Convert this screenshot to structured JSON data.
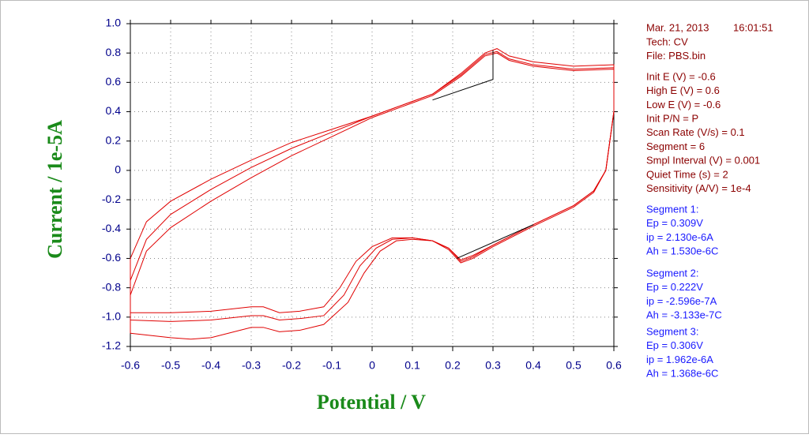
{
  "chart_data": {
    "type": "line",
    "x_label": "Potential / V",
    "y_label": "Current / 1e-5A",
    "xlim": [
      -0.6,
      0.6
    ],
    "ylim": [
      -1.2,
      1.0
    ],
    "xticks": [
      -0.6,
      -0.5,
      -0.4,
      -0.3,
      -0.2,
      -0.1,
      0,
      0.1,
      0.2,
      0.3,
      0.4,
      0.5,
      0.6
    ],
    "yticks": [
      {
        "value": 1,
        "label": "1.0"
      },
      0.8,
      0.6,
      0.4,
      0.2,
      0,
      -0.2,
      -0.4,
      -0.6,
      -0.8,
      {
        "value": -1,
        "label": "-1.0"
      },
      -1.2
    ],
    "grid": true,
    "series": [
      {
        "color": "#e00000",
        "x": [
          -0.6,
          -0.5,
          -0.4,
          -0.3,
          -0.27,
          -0.23,
          -0.18,
          -0.12,
          -0.08,
          -0.04,
          0,
          0.05,
          0.1,
          0.15,
          0.19,
          0.22,
          0.25,
          0.3,
          0.4,
          0.5,
          0.55,
          0.58,
          0.6,
          0.6,
          0.5,
          0.4,
          0.34,
          0.31,
          0.28,
          0.22,
          0.15,
          0.1,
          0,
          -0.1,
          -0.2,
          -0.3,
          -0.4,
          -0.5,
          -0.56,
          -0.6,
          -0.6
        ],
        "values": [
          -0.97,
          -0.97,
          -0.96,
          -0.93,
          -0.93,
          -0.97,
          -0.96,
          -0.93,
          -0.8,
          -0.62,
          -0.52,
          -0.46,
          -0.46,
          -0.48,
          -0.53,
          -0.61,
          -0.58,
          -0.51,
          -0.37,
          -0.24,
          -0.14,
          0,
          0.4,
          0.72,
          0.71,
          0.74,
          0.78,
          0.83,
          0.8,
          0.66,
          0.52,
          0.47,
          0.37,
          0.28,
          0.19,
          0.07,
          -0.06,
          -0.21,
          -0.35,
          -0.6,
          -0.97
        ]
      },
      {
        "color": "#e00000",
        "x": [
          -0.6,
          -0.5,
          -0.4,
          -0.3,
          -0.27,
          -0.23,
          -0.18,
          -0.12,
          -0.07,
          -0.03,
          0.01,
          0.05,
          0.1,
          0.15,
          0.19,
          0.22,
          0.25,
          0.3,
          0.4,
          0.5,
          0.55,
          0.58,
          0.6,
          0.6,
          0.5,
          0.4,
          0.34,
          0.31,
          0.28,
          0.22,
          0.15,
          0.1,
          0,
          -0.1,
          -0.2,
          -0.3,
          -0.4,
          -0.5,
          -0.56,
          -0.6,
          -0.6
        ],
        "values": [
          -1.02,
          -1.03,
          -1.02,
          -0.99,
          -0.99,
          -1.02,
          -1.01,
          -0.99,
          -0.85,
          -0.65,
          -0.53,
          -0.47,
          -0.46,
          -0.48,
          -0.53,
          -0.62,
          -0.59,
          -0.51,
          -0.37,
          -0.24,
          -0.14,
          0,
          0.4,
          0.7,
          0.69,
          0.72,
          0.76,
          0.81,
          0.79,
          0.65,
          0.52,
          0.47,
          0.37,
          0.26,
          0.15,
          0.02,
          -0.13,
          -0.3,
          -0.47,
          -0.75,
          -1.02
        ]
      },
      {
        "color": "#e00000",
        "x": [
          -0.6,
          -0.5,
          -0.45,
          -0.4,
          -0.3,
          -0.27,
          -0.23,
          -0.18,
          -0.12,
          -0.06,
          -0.02,
          0.02,
          0.06,
          0.1,
          0.15,
          0.19,
          0.22,
          0.25,
          0.3,
          0.4,
          0.5,
          0.55,
          0.58,
          0.6,
          0.6,
          0.5,
          0.4,
          0.34,
          0.31,
          0.28,
          0.22,
          0.15,
          0.1,
          0,
          -0.1,
          -0.2,
          -0.3,
          -0.4,
          -0.5,
          -0.56,
          -0.6,
          -0.6
        ],
        "values": [
          -1.11,
          -1.14,
          -1.15,
          -1.14,
          -1.07,
          -1.07,
          -1.1,
          -1.09,
          -1.05,
          -0.9,
          -0.7,
          -0.55,
          -0.48,
          -0.47,
          -0.48,
          -0.54,
          -0.63,
          -0.6,
          -0.52,
          -0.38,
          -0.25,
          -0.15,
          0,
          0.4,
          0.69,
          0.68,
          0.71,
          0.75,
          0.8,
          0.78,
          0.64,
          0.51,
          0.46,
          0.36,
          0.23,
          0.1,
          -0.05,
          -0.21,
          -0.39,
          -0.55,
          -0.85,
          -1.11
        ]
      },
      {
        "color": "#000000",
        "x": [
          0.15,
          0.3,
          0.3
        ],
        "values": [
          0.48,
          0.62,
          0.82
        ]
      },
      {
        "color": "#000000",
        "x": [
          0.21,
          0.4
        ],
        "values": [
          -0.6,
          -0.37
        ]
      }
    ]
  },
  "panel": {
    "date": "Mar. 21, 2013",
    "time": "16:01:51",
    "header": [
      "Tech: CV",
      "File: PBS.bin"
    ],
    "parameters": [
      "Init E (V) = -0.6",
      "High E (V) = 0.6",
      "Low E (V) = -0.6",
      "Init P/N = P",
      "Scan Rate (V/s) = 0.1",
      "Segment = 6",
      "Smpl Interval (V) = 0.001",
      "Quiet Time (s) = 2",
      "Sensitivity (A/V) = 1e-4"
    ],
    "segments": [
      {
        "title": "Segment 1:",
        "lines": [
          "Ep = 0.309V",
          "ip = 2.130e-6A",
          "Ah = 1.530e-6C"
        ]
      },
      {
        "title": "Segment 2:",
        "lines": [
          "Ep = 0.222V",
          "ip = -2.596e-7A",
          "Ah = -3.133e-7C"
        ]
      },
      {
        "title": "Segment 3:",
        "lines": [
          "Ep = 0.306V",
          "ip = 1.962e-6A",
          "Ah = 1.368e-6C"
        ]
      }
    ]
  }
}
